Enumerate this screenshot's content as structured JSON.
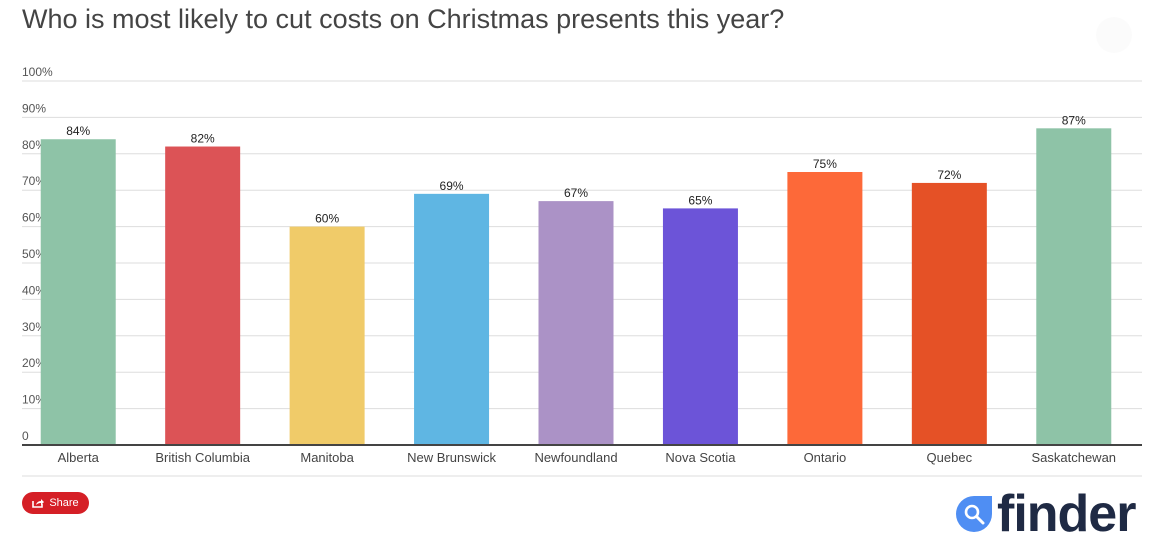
{
  "title": "Who is most likely to cut costs on Christmas presents this year?",
  "share_label": "Share",
  "logo_text": "finder",
  "chart_data": {
    "type": "bar",
    "title": "Who is most likely to cut costs on Christmas presents this year?",
    "xlabel": "",
    "ylabel": "",
    "ylim": [
      0,
      100
    ],
    "grid": true,
    "y_ticks": [
      "0",
      "10%",
      "20%",
      "30%",
      "40%",
      "50%",
      "60%",
      "70%",
      "80%",
      "90%",
      "100%"
    ],
    "y_tick_values": [
      0,
      10,
      20,
      30,
      40,
      50,
      60,
      70,
      80,
      90,
      100
    ],
    "categories": [
      "Alberta",
      "British Columbia",
      "Manitoba",
      "New Brunswick",
      "Newfoundland",
      "Nova Scotia",
      "Ontario",
      "Quebec",
      "Saskatchewan"
    ],
    "values": [
      84,
      82,
      60,
      69,
      67,
      65,
      75,
      72,
      87
    ],
    "data_labels": [
      "84%",
      "82%",
      "60%",
      "69%",
      "67%",
      "65%",
      "75%",
      "72%",
      "87%"
    ],
    "colors": [
      "#8ec3a7",
      "#dc5356",
      "#f0cb69",
      "#5fb6e3",
      "#ab92c6",
      "#6c54d8",
      "#fd6939",
      "#e55126",
      "#8ec3a7"
    ]
  },
  "colors": {
    "share_button": "#d51f26",
    "logo_blue": "#4f8ef3",
    "logo_text": "#1f2a44"
  },
  "icons": {
    "share": "share-icon",
    "logo": "search-magnifier-icon"
  }
}
